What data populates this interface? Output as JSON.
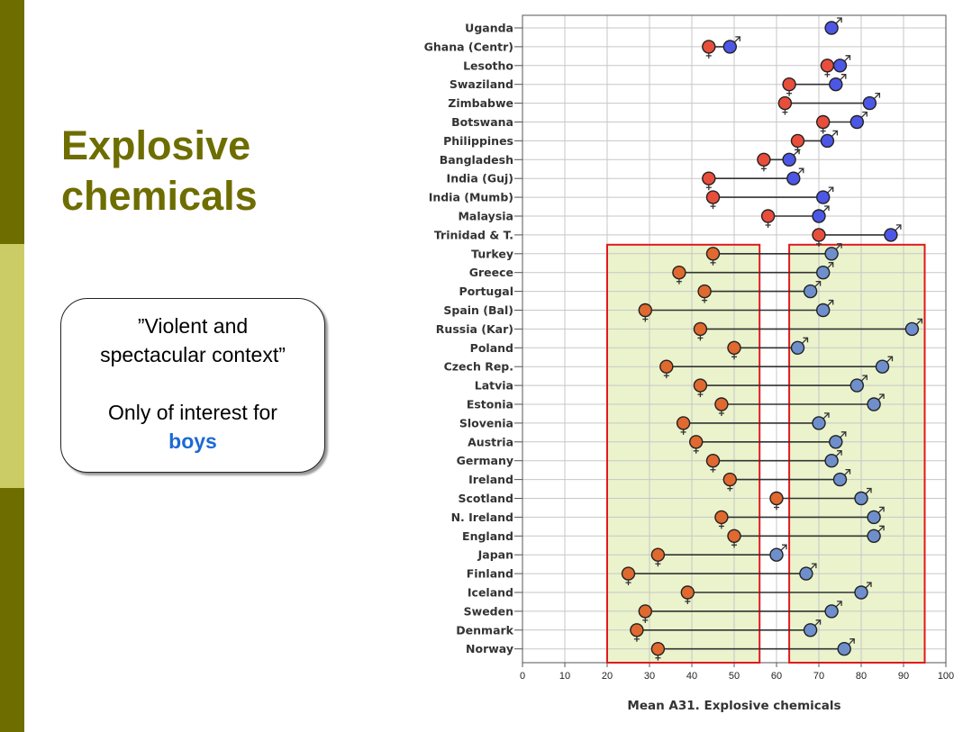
{
  "slide": {
    "title_line1": "Explosive",
    "title_line2": "chemicals",
    "note_line1": "”Violent and",
    "note_line2": "spectacular context”",
    "note_line3": "Only of interest for",
    "note_highlight": "boys"
  },
  "colors": {
    "sidebar_dark": "#6e6d00",
    "sidebar_light": "#cccc66",
    "title": "#6e6d00",
    "boys_text": "#1c6ad6",
    "boys_marker": "#4d57e6",
    "girls_marker": "#e84e3b",
    "girls_marker_eu": "#e0692f",
    "boys_marker_eu": "#6f8fcc",
    "highlight_fill": "#eaf3cc",
    "highlight_border": "#e0191e"
  },
  "chart_data": {
    "type": "dot-range",
    "xlabel": "Mean A31. Explosive chemicals",
    "xlim": [
      0,
      100
    ],
    "xticks": [
      0,
      10,
      20,
      30,
      40,
      50,
      60,
      70,
      80,
      90,
      100
    ],
    "grid": true,
    "series": [
      {
        "name": "girls",
        "symbol": "♀"
      },
      {
        "name": "boys",
        "symbol": "♂"
      }
    ],
    "highlight_ranges": [
      [
        20,
        56
      ],
      [
        63,
        95
      ]
    ],
    "highlight_start_country": "Turkey",
    "countries": [
      {
        "name": "Uganda",
        "girls": null,
        "boys": 73
      },
      {
        "name": "Ghana (Centr)",
        "girls": 44,
        "boys": 49
      },
      {
        "name": "Lesotho",
        "girls": 72,
        "boys": 75
      },
      {
        "name": "Swaziland",
        "girls": 63,
        "boys": 74
      },
      {
        "name": "Zimbabwe",
        "girls": 62,
        "boys": 82
      },
      {
        "name": "Botswana",
        "girls": 71,
        "boys": 79
      },
      {
        "name": "Philippines",
        "girls": 65,
        "boys": 72
      },
      {
        "name": "Bangladesh",
        "girls": 57,
        "boys": 63
      },
      {
        "name": "India (Guj)",
        "girls": 44,
        "boys": 64
      },
      {
        "name": "India (Mumb)",
        "girls": 45,
        "boys": 71
      },
      {
        "name": "Malaysia",
        "girls": 58,
        "boys": 70
      },
      {
        "name": "Trinidad & T.",
        "girls": 70,
        "boys": 87
      },
      {
        "name": "Turkey",
        "girls": 45,
        "boys": 73
      },
      {
        "name": "Greece",
        "girls": 37,
        "boys": 71
      },
      {
        "name": "Portugal",
        "girls": 43,
        "boys": 68
      },
      {
        "name": "Spain (Bal)",
        "girls": 29,
        "boys": 71
      },
      {
        "name": "Russia (Kar)",
        "girls": 42,
        "boys": 92
      },
      {
        "name": "Poland",
        "girls": 50,
        "boys": 65
      },
      {
        "name": "Czech Rep.",
        "girls": 34,
        "boys": 85
      },
      {
        "name": "Latvia",
        "girls": 42,
        "boys": 79
      },
      {
        "name": "Estonia",
        "girls": 47,
        "boys": 83
      },
      {
        "name": "Slovenia",
        "girls": 38,
        "boys": 70
      },
      {
        "name": "Austria",
        "girls": 41,
        "boys": 74
      },
      {
        "name": "Germany",
        "girls": 45,
        "boys": 73
      },
      {
        "name": "Ireland",
        "girls": 49,
        "boys": 75
      },
      {
        "name": "Scotland",
        "girls": 60,
        "boys": 80
      },
      {
        "name": "N. Ireland",
        "girls": 47,
        "boys": 83
      },
      {
        "name": "England",
        "girls": 50,
        "boys": 83
      },
      {
        "name": "Japan",
        "girls": 32,
        "boys": 60
      },
      {
        "name": "Finland",
        "girls": 25,
        "boys": 67
      },
      {
        "name": "Iceland",
        "girls": 39,
        "boys": 80
      },
      {
        "name": "Sweden",
        "girls": 29,
        "boys": 73
      },
      {
        "name": "Denmark",
        "girls": 27,
        "boys": 68
      },
      {
        "name": "Norway",
        "girls": 32,
        "boys": 76
      }
    ]
  }
}
